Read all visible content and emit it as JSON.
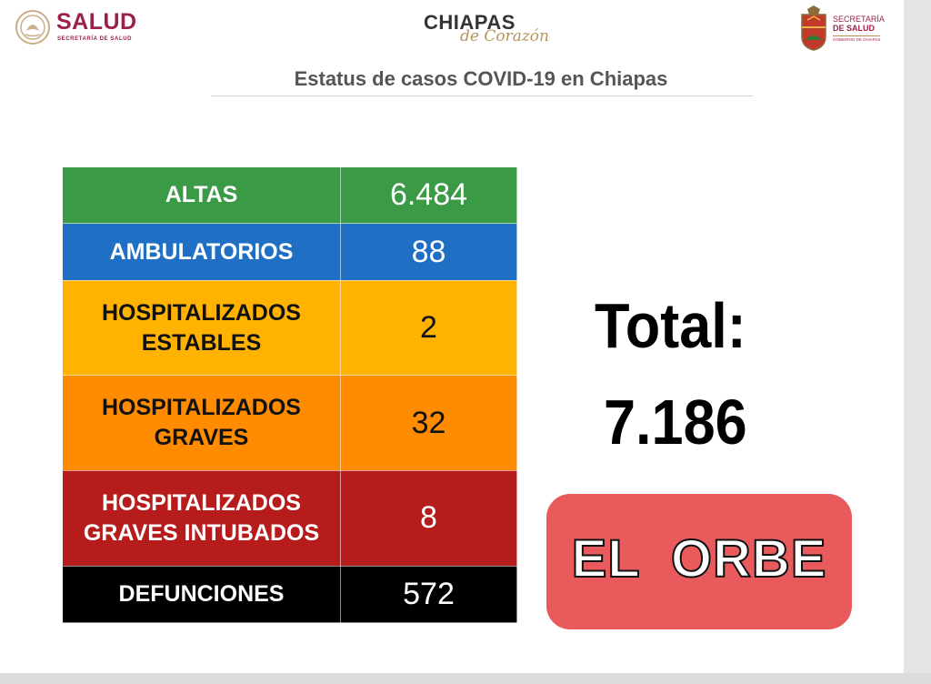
{
  "header": {
    "salud_logo": {
      "word": "SALUD",
      "subtitle": "SECRETARÍA DE SALUD",
      "color": "#9b2247"
    },
    "chiapas_logo": {
      "word": "CHIAPAS",
      "script": "de Corazón",
      "script_color": "#b6935b"
    },
    "secretaria_logo": {
      "line1": "SECRETARÍA",
      "line2": "DE SALUD",
      "line3": "GOBIERNO DE CHIAPAS"
    }
  },
  "title": "Estatus de casos COVID-19 en Chiapas",
  "status_table": {
    "rows": [
      {
        "label": "ALTAS",
        "value": "6.484",
        "bg": "#3a9a45",
        "fg": "#ffffff"
      },
      {
        "label": "AMBULATORIOS",
        "value": "88",
        "bg": "#1f6fc4",
        "fg": "#ffffff"
      },
      {
        "label": "HOSPITALIZADOS ESTABLES",
        "value": "2",
        "bg": "#ffb300",
        "fg": "#111111"
      },
      {
        "label": "HOSPITALIZADOS GRAVES",
        "value": "32",
        "bg": "#ff8c00",
        "fg": "#111111"
      },
      {
        "label": "HOSPITALIZADOS GRAVES INTUBADOS",
        "value": "8",
        "bg": "#b71c1c",
        "fg": "#ffffff"
      },
      {
        "label": "DEFUNCIONES",
        "value": "572",
        "bg": "#000000",
        "fg": "#ffffff"
      }
    ]
  },
  "total": {
    "label": "Total:",
    "value": "7.186"
  },
  "badge": {
    "text": "EL  ORBE",
    "bg": "#e85a5c"
  }
}
